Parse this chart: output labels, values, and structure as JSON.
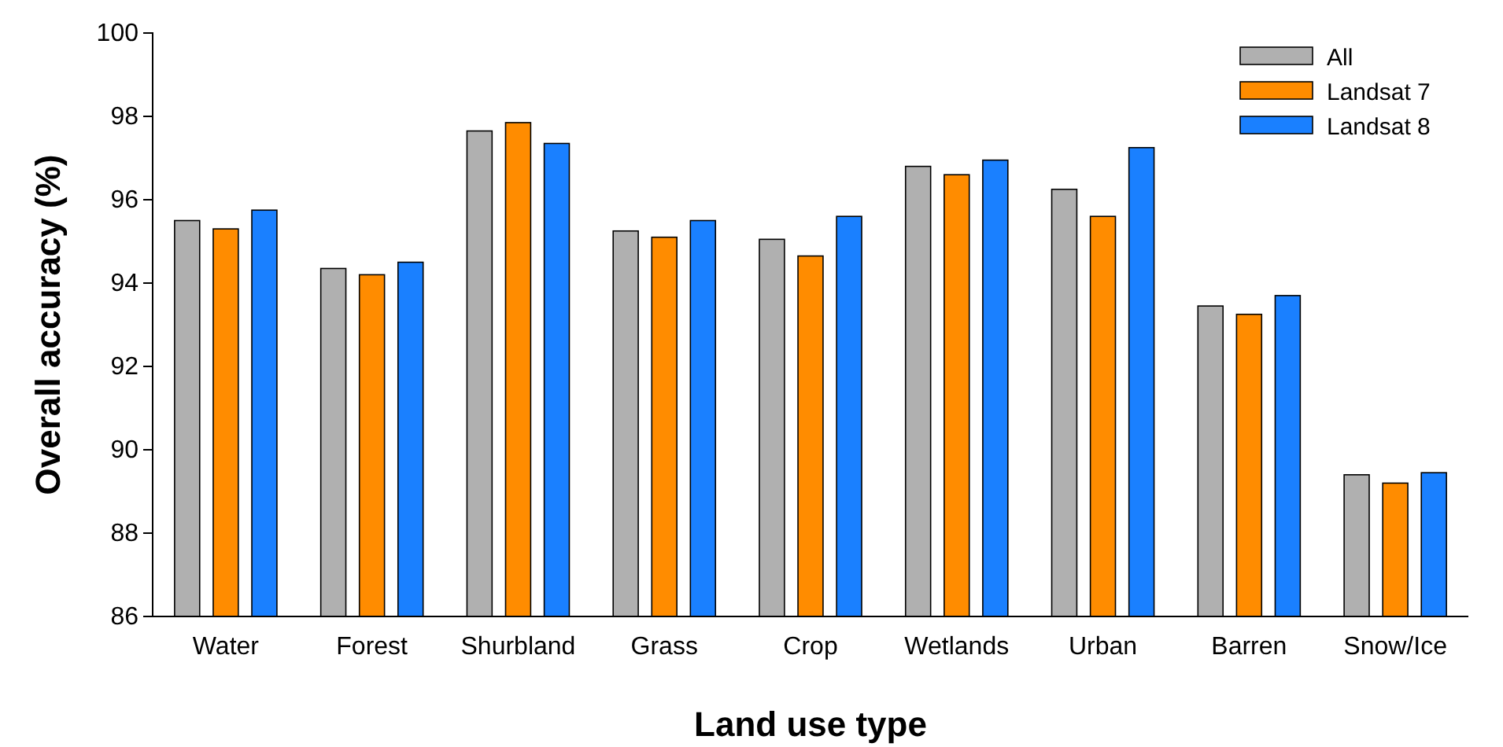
{
  "chart_data": {
    "type": "bar",
    "xlabel": "Land use type",
    "ylabel": "Overall accuracy (%)",
    "categories": [
      "Water",
      "Forest",
      "Shurbland",
      "Grass",
      "Crop",
      "Wetlands",
      "Urban",
      "Barren",
      "Snow/Ice"
    ],
    "series": [
      {
        "name": "All",
        "color": "#b0b0b0",
        "values": [
          95.5,
          94.35,
          97.65,
          95.25,
          95.05,
          96.8,
          96.25,
          93.45,
          89.4
        ]
      },
      {
        "name": "Landsat 7",
        "color": "#ff8c00",
        "values": [
          95.3,
          94.2,
          97.85,
          95.1,
          94.65,
          96.6,
          95.6,
          93.25,
          89.2
        ]
      },
      {
        "name": "Landsat 8",
        "color": "#1a80ff",
        "values": [
          95.75,
          94.5,
          97.35,
          95.5,
          95.6,
          96.95,
          97.25,
          93.7,
          89.45
        ]
      }
    ],
    "ylim": [
      86,
      100
    ],
    "yticks": [
      86,
      88,
      90,
      92,
      94,
      96,
      98,
      100
    ],
    "legend": "top right"
  }
}
